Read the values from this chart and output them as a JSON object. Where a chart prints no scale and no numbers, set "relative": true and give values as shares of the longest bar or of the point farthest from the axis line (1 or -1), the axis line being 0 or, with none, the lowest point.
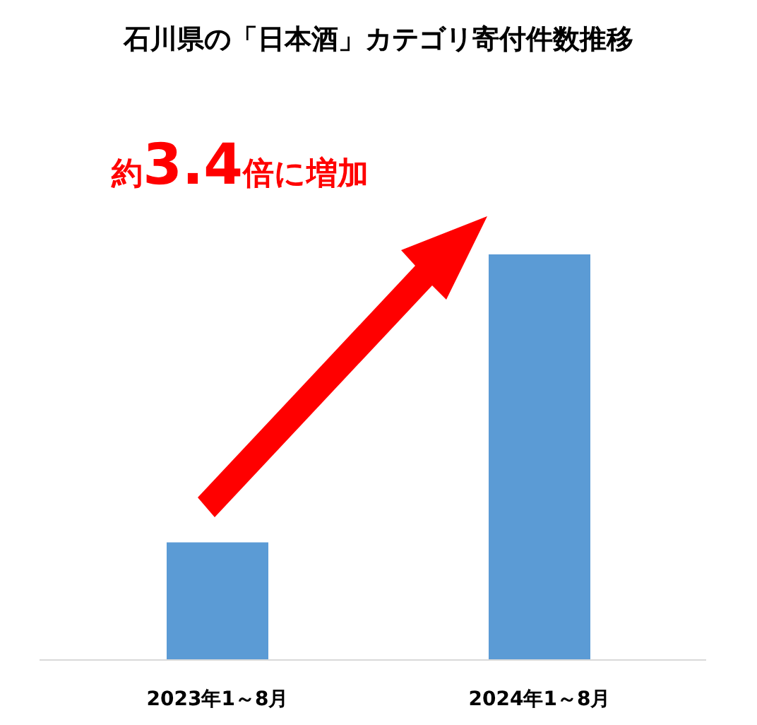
{
  "chart_data": {
    "type": "bar",
    "title": "石川県の「日本酒」カテゴリ寄付件数推移",
    "categories": [
      "2023年1～8月",
      "2024年1～8月"
    ],
    "series": [
      {
        "color": "#5b9bd5",
        "values": [
          0.29,
          1
        ]
      }
    ],
    "relative": true,
    "annotations": [
      "約3.4倍に増加"
    ]
  }
}
